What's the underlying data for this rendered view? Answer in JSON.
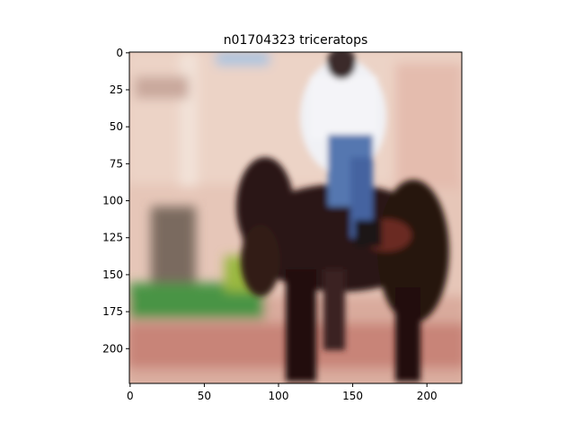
{
  "title": "n01704323 triceratops",
  "image": {
    "description_icon": "horse-rider-photo",
    "colors": {
      "background": "#e8c9bb",
      "horse": "#2a1614",
      "rider_shirt": "#eef0f4",
      "rider_jeans": "#4a6ea8",
      "grass": "#3f8a3a",
      "fence": "#d8b0a6",
      "ground": "#c8847a"
    }
  },
  "axes": {
    "x_ticks": [
      "0",
      "50",
      "100",
      "150",
      "200"
    ],
    "x_tick_values": [
      0,
      50,
      100,
      150,
      200
    ],
    "y_ticks": [
      "0",
      "25",
      "50",
      "75",
      "100",
      "125",
      "150",
      "175",
      "200"
    ],
    "y_tick_values": [
      0,
      25,
      50,
      75,
      100,
      125,
      150,
      175,
      200
    ],
    "xlim": [
      -0.5,
      223.5
    ],
    "ylim": [
      223.5,
      -0.5
    ]
  }
}
